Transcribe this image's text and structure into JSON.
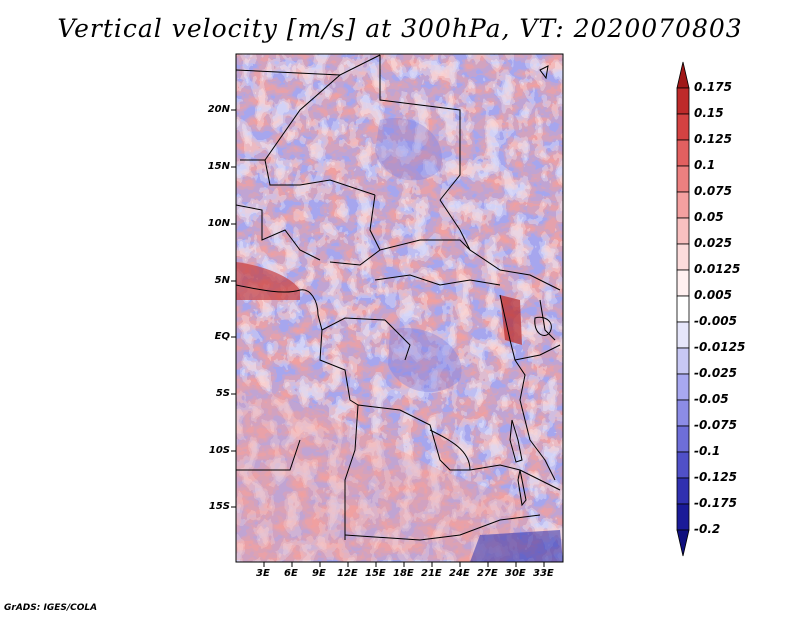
{
  "title": "Vertical velocity [m/s] at 300hPa, VT: 2020070803",
  "credit": "GrADS: IGES/COLA",
  "map": {
    "variable": "Vertical velocity",
    "units": "m/s",
    "level": "300hPa",
    "valid_time": "2020070803",
    "lat_labels": [
      "20N",
      "15N",
      "10N",
      "5N",
      "EQ",
      "5S",
      "10S",
      "15S"
    ],
    "lon_labels": [
      "3E",
      "6E",
      "9E",
      "12E",
      "15E",
      "18E",
      "21E",
      "24E",
      "27E",
      "30E",
      "33E"
    ]
  },
  "colorbar": {
    "labels": [
      "0.175",
      "0.15",
      "0.125",
      "0.1",
      "0.075",
      "0.05",
      "0.025",
      "0.0125",
      "0.005",
      "-0.005",
      "-0.0125",
      "-0.025",
      "-0.05",
      "-0.075",
      "-0.1",
      "-0.125",
      "-0.175",
      "-0.2"
    ],
    "colors": [
      "#a01818",
      "#be2a2a",
      "#d44242",
      "#e26060",
      "#ec8080",
      "#f4a0a0",
      "#f8c0c0",
      "#fcdcdc",
      "#fff0f0",
      "#ffffff",
      "#e6e6fa",
      "#c8c8f4",
      "#a8a8f0",
      "#8c8ce6",
      "#6e6ed8",
      "#5050c8",
      "#3030b0",
      "#1a1a98",
      "#10107e"
    ]
  }
}
